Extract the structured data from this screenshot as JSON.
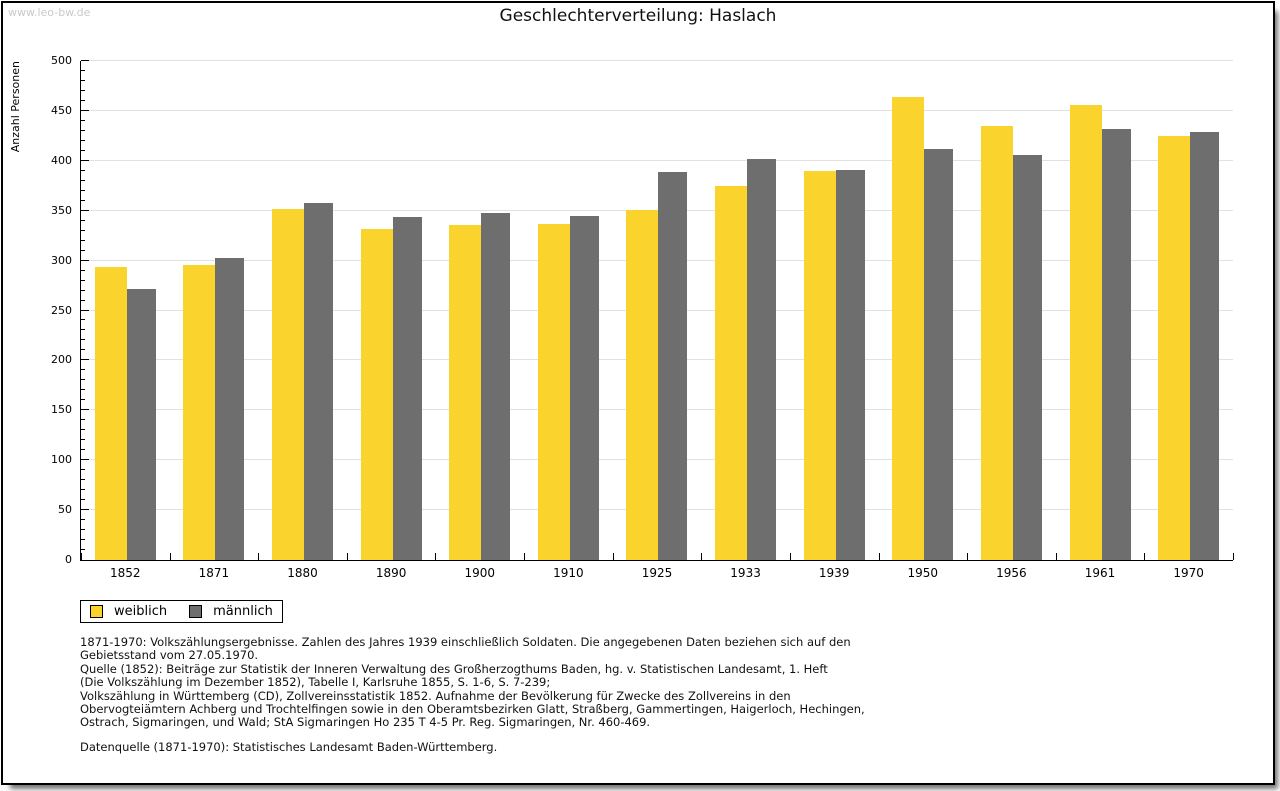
{
  "page": {
    "watermark": "www.leo-bw.de",
    "title": "Geschlechterverteilung: Haslach"
  },
  "chart_data": {
    "type": "bar",
    "title": "Geschlechterverteilung: Haslach",
    "ylabel": "Anzahl Personen",
    "xlabel": "",
    "ylim": [
      0,
      500
    ],
    "y_major_step": 50,
    "y_minor_step": 10,
    "grid": true,
    "legend_position": "bottom-left",
    "categories": [
      "1852",
      "1871",
      "1880",
      "1890",
      "1900",
      "1910",
      "1925",
      "1933",
      "1939",
      "1950",
      "1956",
      "1961",
      "1970"
    ],
    "series": [
      {
        "name": "weiblich",
        "color": "#FBD32D",
        "values": [
          294,
          296,
          352,
          332,
          336,
          337,
          351,
          375,
          390,
          464,
          435,
          456,
          425
        ]
      },
      {
        "name": "männlich",
        "color": "#6E6E6E",
        "values": [
          272,
          303,
          358,
          344,
          348,
          345,
          389,
          402,
          391,
          412,
          406,
          432,
          429
        ]
      }
    ]
  },
  "legend": {
    "items": [
      {
        "label": "weiblich",
        "color": "#FBD32D"
      },
      {
        "label": "männlich",
        "color": "#6E6E6E"
      }
    ]
  },
  "footnotes": {
    "lines": [
      "1871-1970: Volkszählungsergebnisse. Zahlen des Jahres 1939 einschließlich Soldaten. Die angegebenen Daten beziehen sich auf den",
      "Gebietsstand vom 27.05.1970.",
      "Quelle (1852): Beiträge zur Statistik der Inneren Verwaltung des Großherzogthums Baden, hg. v. Statistischen Landesamt, 1. Heft",
      "(Die Volkszählung im Dezember 1852), Tabelle I, Karlsruhe 1855, S. 1-6, S. 7-239;",
      "Volkszählung in Württemberg (CD), Zollvereinsstatistik 1852. Aufnahme der Bevölkerung für Zwecke des Zollvereins in den",
      "Obervogteiämtern Achberg und Trochtelfingen sowie in den Oberamtsbezirken Glatt, Straßberg, Gammertingen, Haigerloch, Hechingen,",
      "Ostrach, Sigmaringen, und Wald; StA Sigmaringen Ho 235 T 4-5 Pr. Reg. Sigmaringen, Nr. 460-469."
    ],
    "datasource": "Datenquelle (1871-1970): Statistisches Landesamt Baden-Württemberg."
  }
}
